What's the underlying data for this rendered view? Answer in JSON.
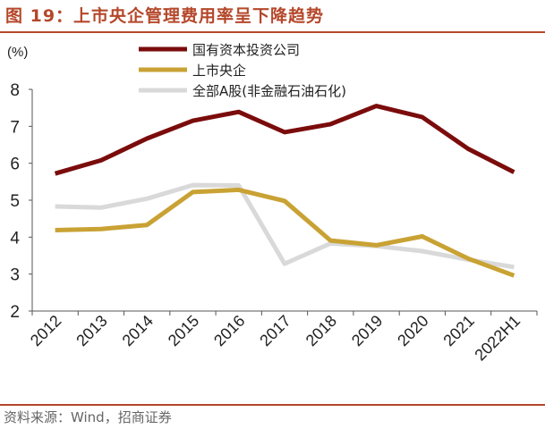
{
  "figure": {
    "title": "图 19：上市央企管理费用率呈下降趋势",
    "source": "资料来源：Wind，招商证券"
  },
  "chart_data": {
    "type": "line",
    "title": "",
    "xlabel": "",
    "ylabel": "",
    "unit_label": "(%)",
    "categories": [
      "2012",
      "2013",
      "2014",
      "2015",
      "2016",
      "2017",
      "2018",
      "2019",
      "2020",
      "2021",
      "2022H1"
    ],
    "ylim": [
      2,
      8
    ],
    "yticks": [
      2,
      3,
      4,
      5,
      6,
      7,
      8
    ],
    "grid": false,
    "legend_position": "top",
    "series": [
      {
        "name": "国有资本投资公司",
        "color": "#7b0c0c",
        "values": [
          5.72,
          6.08,
          6.67,
          7.15,
          7.39,
          6.84,
          7.06,
          7.55,
          7.25,
          6.39,
          5.76
        ]
      },
      {
        "name": "上市央企",
        "color": "#c9a234",
        "values": [
          4.19,
          4.22,
          4.33,
          5.22,
          5.28,
          4.98,
          3.91,
          3.78,
          4.02,
          3.42,
          2.96
        ]
      },
      {
        "name": "全部A股(非金融石油石化)",
        "color": "#d9d9d9",
        "values": [
          4.83,
          4.8,
          5.04,
          5.41,
          5.4,
          3.28,
          3.83,
          3.76,
          3.62,
          3.39,
          3.19
        ]
      }
    ]
  }
}
